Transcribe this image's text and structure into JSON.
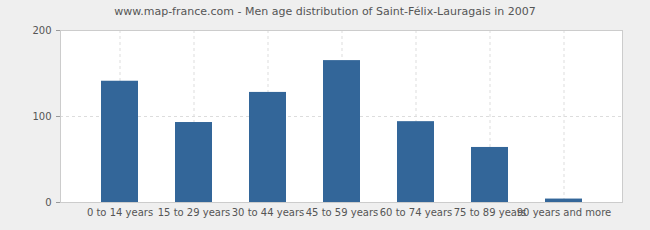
{
  "chart_data": {
    "type": "bar",
    "title": "www.map-france.com - Men age distribution of Saint-Félix-Lauragais in 2007",
    "categories": [
      "0 to 14 years",
      "15 to 29 years",
      "30 to 44 years",
      "45 to 59 years",
      "60 to 74 years",
      "75 to 89 years",
      "90 years and more"
    ],
    "values": [
      141,
      93,
      128,
      165,
      94,
      64,
      4
    ],
    "color": "#336699",
    "ylim": [
      0,
      200
    ],
    "yticks": [
      0,
      100,
      200
    ],
    "grid": true
  }
}
